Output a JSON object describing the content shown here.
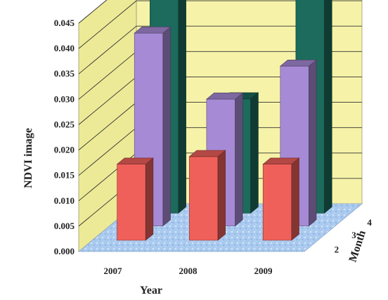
{
  "chart_data": {
    "type": "bar",
    "subtype": "3d-grouped",
    "ylabel": "NDVI image",
    "xlabel": "Year",
    "zlabel": "Month",
    "categories": [
      "2007",
      "2008",
      "2009"
    ],
    "y_ticks": [
      "0.000",
      "0.005",
      "0.010",
      "0.015",
      "0.020",
      "0.025",
      "0.030",
      "0.035",
      "0.040",
      "0.045"
    ],
    "ylim": [
      0,
      0.045
    ],
    "series": [
      {
        "name": "2",
        "values": [
          0.015,
          0.0165,
          0.015
        ],
        "color": "#f0605a"
      },
      {
        "name": "3",
        "values": [
          0.038,
          0.025,
          0.0315
        ],
        "color": "#a78ad6"
      },
      {
        "name": "4",
        "values": [
          0.046,
          0.0225,
          0.043
        ],
        "color": "#1c6b5c"
      }
    ],
    "grid": true,
    "wall_color": "#f6f3a8",
    "floor_color": "#a7c8ee"
  }
}
